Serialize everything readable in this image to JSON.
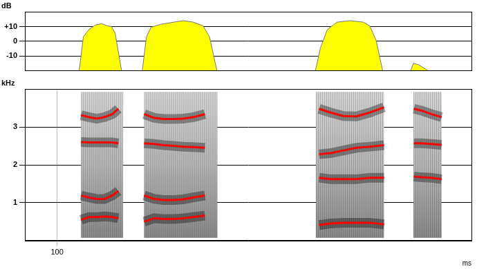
{
  "chart_data": [
    {
      "type": "area",
      "title": "dB",
      "x": [
        148,
        157,
        169,
        183,
        197,
        209,
        218,
        226,
        240,
        260,
        285,
        294,
        304,
        325,
        353,
        374,
        396,
        417,
        431,
        447,
        550,
        661,
        672,
        687,
        708,
        736,
        765,
        779,
        793,
        807,
        840,
        868,
        874,
        885,
        906
      ],
      "values": [
        -20,
        3,
        8,
        11,
        12,
        10.5,
        10,
        5.5,
        -20,
        null,
        -20,
        3,
        9.5,
        11.5,
        13,
        14,
        13,
        10.5,
        3,
        -20,
        null,
        -20,
        -4.5,
        8,
        13,
        14,
        13,
        10.5,
        0.5,
        -20,
        null,
        -20,
        -15,
        -16,
        -20
      ],
      "color": "#ffff00",
      "xlim": [
        30,
        1000
      ],
      "ylim": [
        -20,
        20
      ],
      "yticks": [
        {
          "value": 10,
          "label": "+10"
        },
        0,
        -10
      ],
      "grid": true,
      "tick_labels": "y"
    },
    {
      "type": "line",
      "title": "kHz",
      "x_label": "ms",
      "x": [
        152,
        169,
        186,
        203,
        220,
        233,
        260,
        289,
        311,
        332,
        353,
        374,
        396,
        421,
        540,
        669,
        694,
        722,
        750,
        779,
        810,
        845,
        875,
        892,
        913,
        935
      ],
      "series": [
        {
          "color": "#ff0000",
          "values": [
            0.55,
            0.62,
            0.62,
            0.64,
            0.62,
            0.59,
            null,
            0.5,
            0.59,
            0.57,
            0.57,
            0.59,
            0.62,
            0.66,
            null,
            0.41,
            0.45,
            0.47,
            0.47,
            0.47,
            0.43,
            null,
            null,
            null,
            null,
            null
          ]
        },
        {
          "color": "#ff0000",
          "values": [
            1.19,
            1.14,
            1.1,
            1.1,
            1.19,
            1.31,
            null,
            1.19,
            1.1,
            1.07,
            1.07,
            1.09,
            1.14,
            1.19,
            null,
            1.66,
            1.62,
            1.62,
            1.62,
            1.66,
            1.66,
            null,
            1.69,
            1.67,
            1.66,
            1.62
          ]
        },
        {
          "color": "#ff0000",
          "values": [
            2.6,
            2.59,
            2.59,
            2.59,
            2.59,
            2.57,
            null,
            2.57,
            2.55,
            2.52,
            2.5,
            2.48,
            2.47,
            2.45,
            null,
            2.28,
            2.31,
            2.38,
            2.45,
            2.48,
            2.52,
            null,
            2.57,
            2.57,
            2.55,
            2.53
          ]
        },
        {
          "color": "#ff0000",
          "values": [
            3.31,
            3.26,
            3.22,
            3.26,
            3.34,
            3.48,
            null,
            3.34,
            3.24,
            3.21,
            3.21,
            3.22,
            3.26,
            3.34,
            null,
            3.48,
            3.38,
            3.29,
            3.28,
            3.38,
            3.52,
            null,
            3.48,
            3.43,
            3.34,
            3.26
          ]
        }
      ],
      "segments": [
        [
          152,
          243
        ],
        [
          289,
          448
        ],
        [
          662,
          810
        ],
        [
          874,
          935
        ]
      ],
      "xlim": [
        30,
        1000
      ],
      "xticks": [
        100
      ],
      "ylim": [
        0,
        4
      ],
      "yticks": [
        1,
        2,
        3
      ],
      "grid": true
    }
  ]
}
